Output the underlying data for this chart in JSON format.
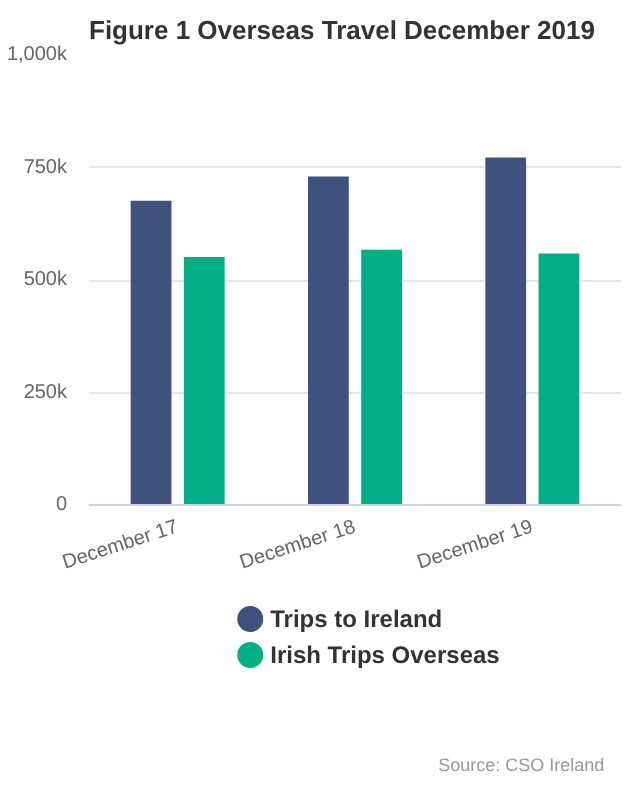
{
  "chart_data": {
    "type": "bar",
    "title": "Figure 1 Overseas Travel December 2019",
    "categories": [
      "December 17",
      "December 18",
      "December 19"
    ],
    "series": [
      {
        "name": "Trips to Ireland",
        "color": "#3f527e",
        "values": [
          676000,
          730000,
          772000
        ]
      },
      {
        "name": "Irish Trips Overseas",
        "color": "#00af86",
        "values": [
          551000,
          567000,
          559000
        ]
      }
    ],
    "ylim": [
      0,
      1000000
    ],
    "yticks": [
      {
        "value": 0,
        "label": "0"
      },
      {
        "value": 250000,
        "label": "250k"
      },
      {
        "value": 500000,
        "label": "500k"
      },
      {
        "value": 750000,
        "label": "750k"
      },
      {
        "value": 1000000,
        "label": "1,000k"
      }
    ],
    "grid": "y",
    "legend": "bottom",
    "annotations": [
      "Source: CSO Ireland"
    ]
  }
}
